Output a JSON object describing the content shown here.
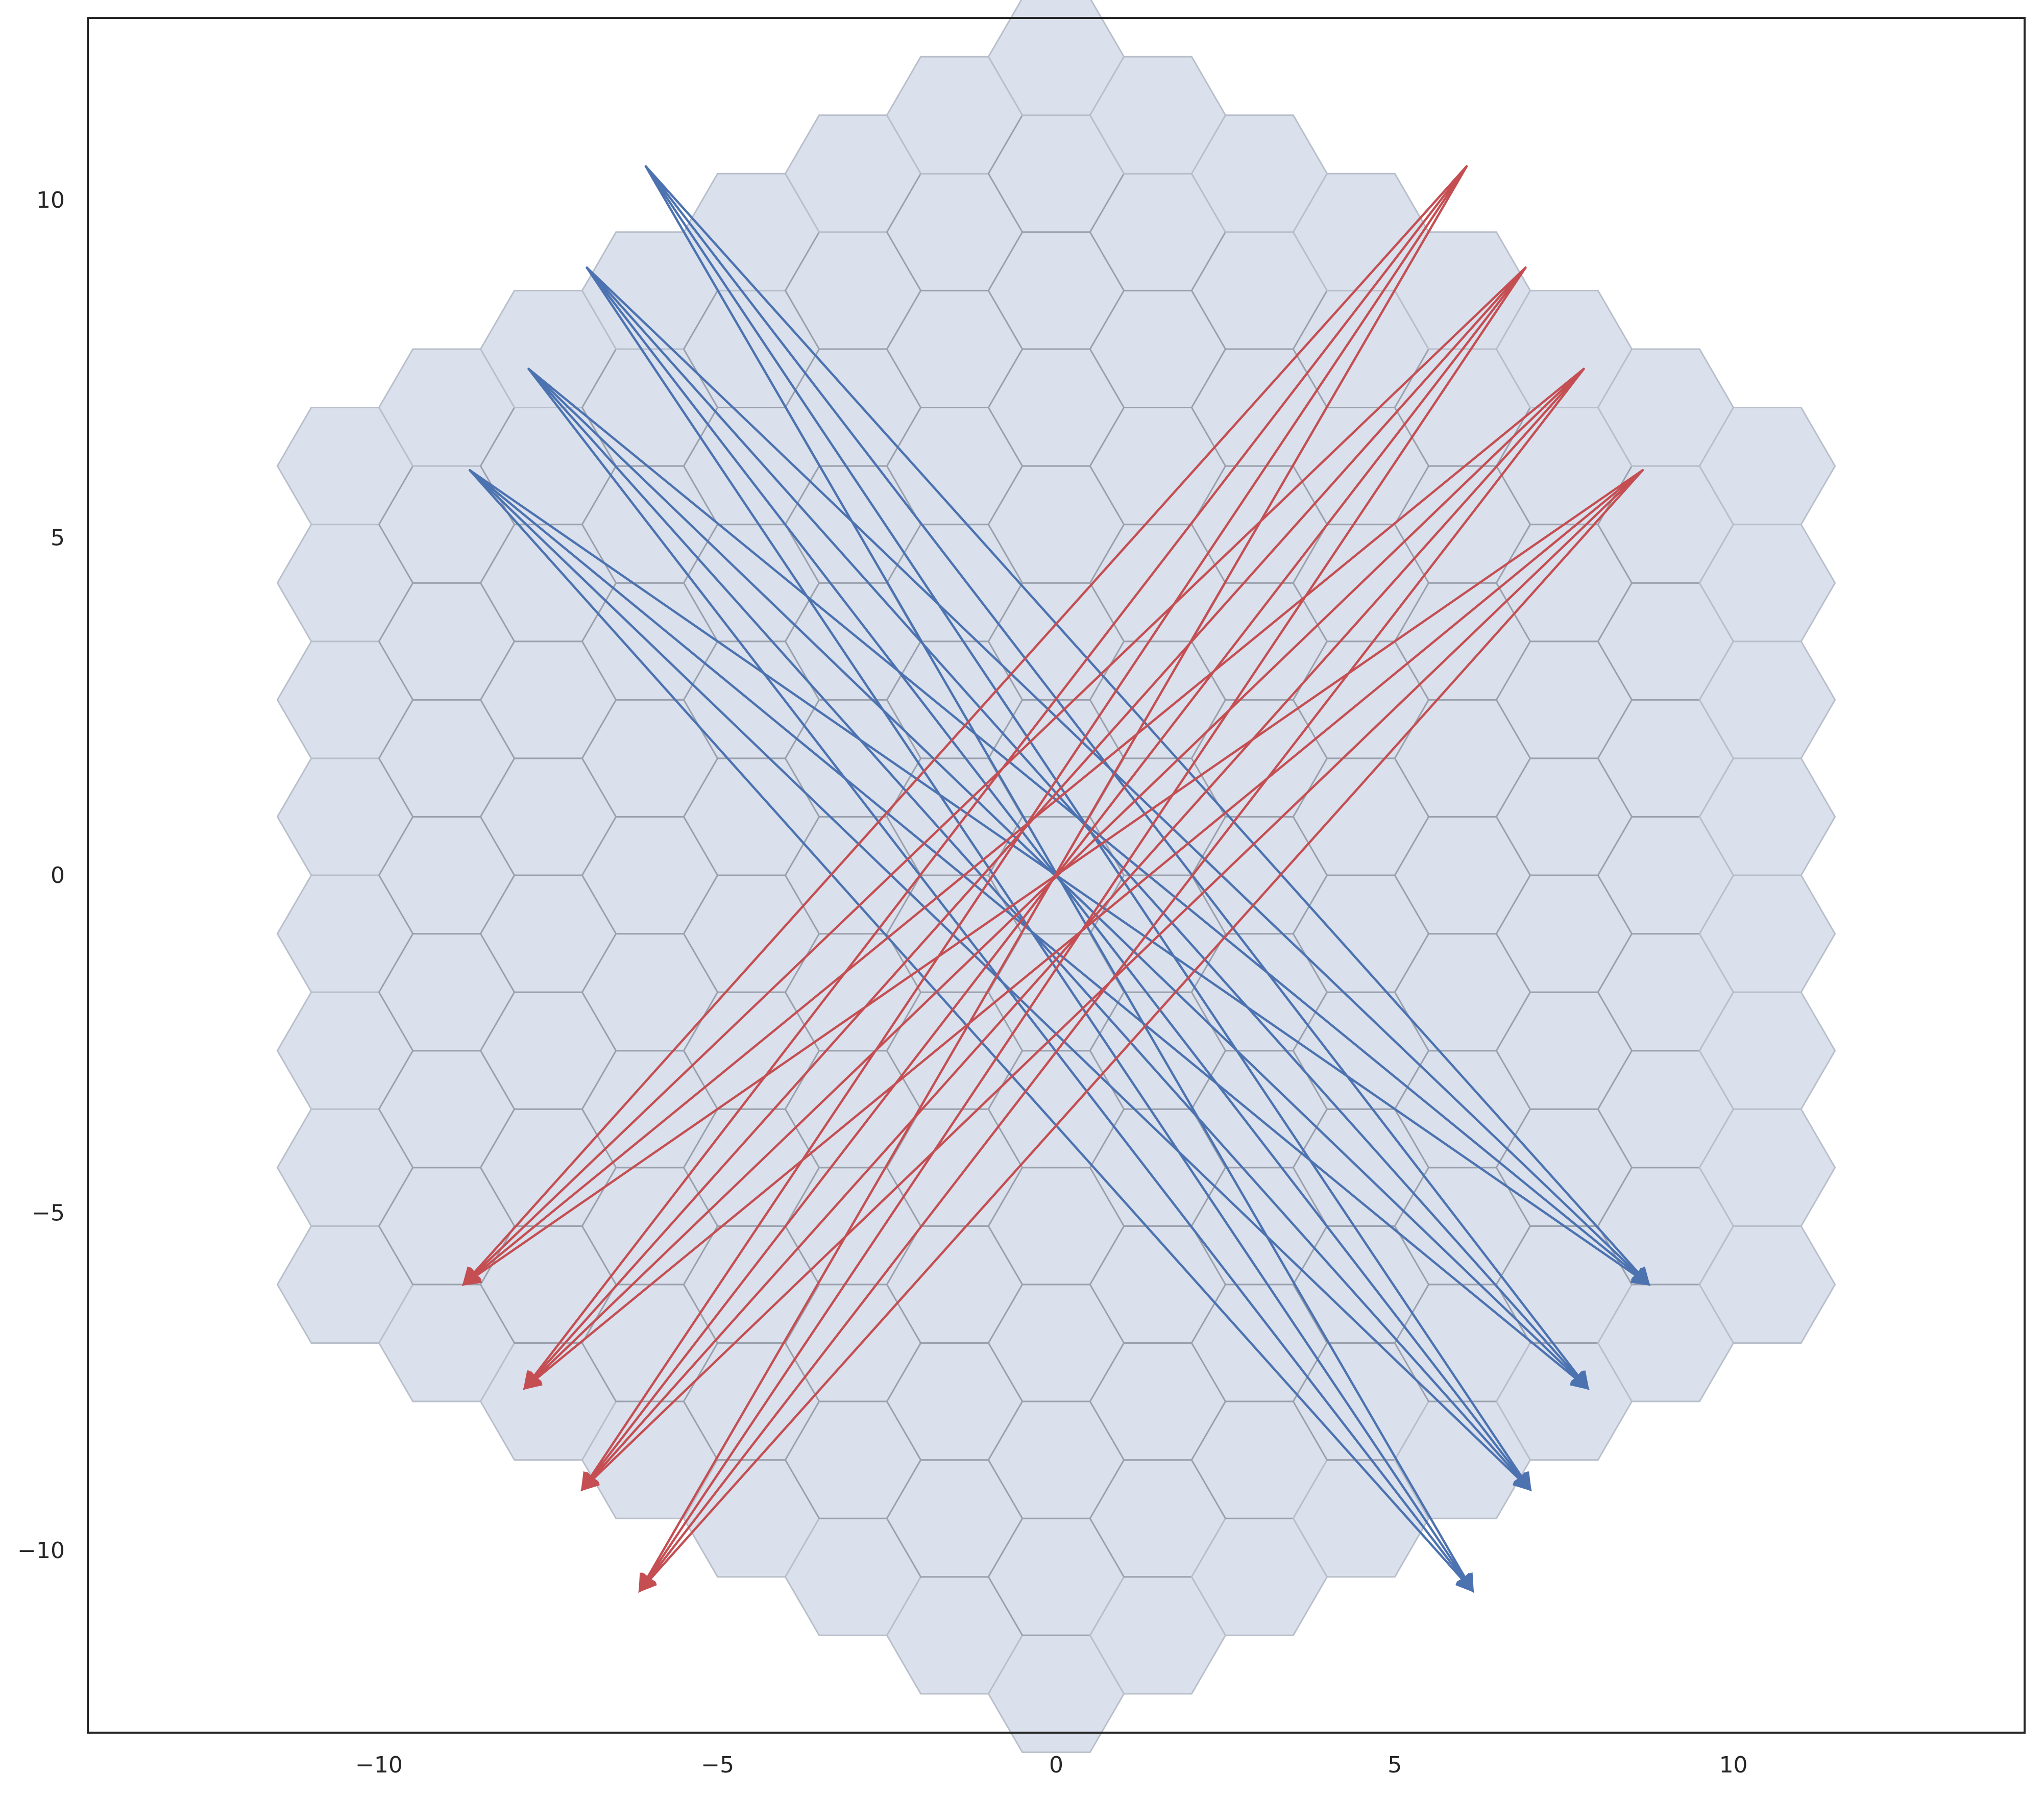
{
  "chart_data": {
    "type": "hexbin-vector-plot",
    "xlim": [
      -14.3,
      14.3
    ],
    "ylim": [
      -12.7,
      12.7
    ],
    "xticks": [
      -10,
      -5,
      0,
      5,
      10
    ],
    "yticks": [
      -10,
      -5,
      0,
      5,
      10
    ],
    "xtick_labels": [
      "−10",
      "−5",
      "0",
      "5",
      "10"
    ],
    "ytick_labels": [
      "−10",
      "−5",
      "0",
      "5",
      "10"
    ],
    "grid": false,
    "hex_grid": {
      "radius": 7,
      "hex_size": 1,
      "orientation": "flat-top",
      "fill_color": "#dae1ed",
      "edge_color": "#9aa1ad"
    },
    "colors": {
      "blue": "#4c72b0",
      "red": "#c44e52"
    },
    "series": [
      {
        "color_key": "blue",
        "sources": [
          [
            -6.06,
            10.5
          ],
          [
            -6.93,
            9.0
          ],
          [
            -7.79,
            7.5
          ],
          [
            -8.66,
            6.0
          ]
        ],
        "targets": [
          [
            8.75,
            -6.06
          ],
          [
            7.85,
            -7.6
          ],
          [
            7.0,
            -9.1
          ],
          [
            6.15,
            -10.6
          ]
        ]
      },
      {
        "color_key": "red",
        "sources": [
          [
            6.06,
            10.5
          ],
          [
            6.93,
            9.0
          ],
          [
            7.79,
            7.5
          ],
          [
            8.66,
            6.0
          ]
        ],
        "targets": [
          [
            -8.75,
            -6.06
          ],
          [
            -7.85,
            -7.6
          ],
          [
            -7.0,
            -9.1
          ],
          [
            -6.15,
            -10.6
          ]
        ]
      }
    ]
  }
}
